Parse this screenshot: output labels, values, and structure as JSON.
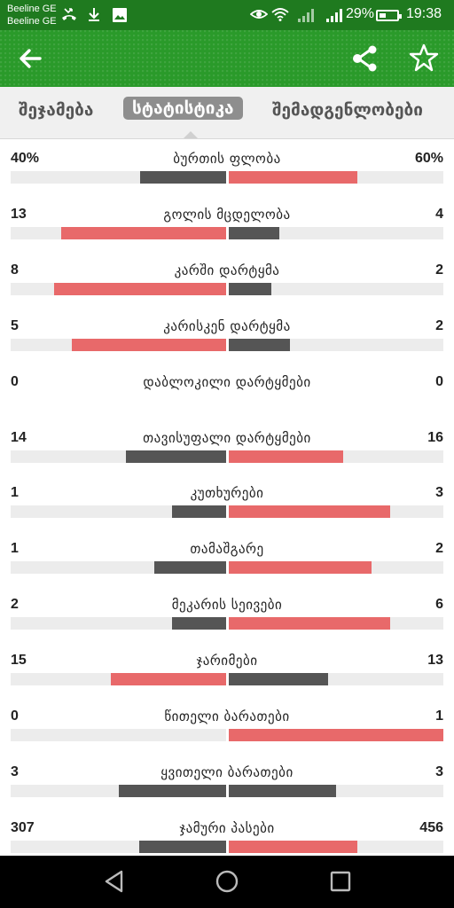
{
  "status_bar": {
    "carrier_1": "Beeline GE",
    "carrier_2": "Beeline GE",
    "battery": "29%",
    "time": "19:38",
    "icons": [
      "missed-call-icon",
      "download-icon",
      "image-icon",
      "eye-icon",
      "wifi-icon",
      "signal-icon",
      "signal-icon",
      "battery-icon"
    ]
  },
  "app_bar": {
    "icons": [
      "back-arrow-icon",
      "share-icon",
      "star-icon"
    ]
  },
  "tabs": [
    {
      "label": "შეჯამება",
      "active": false
    },
    {
      "label": "სტატისტიკა",
      "active": true
    },
    {
      "label": "შემადგენლობები",
      "active": false
    }
  ],
  "colors": {
    "red": "#e8696a",
    "dark": "#555555",
    "track": "#ececec",
    "green": "#2a9a2a"
  },
  "stats": [
    {
      "left": "40%",
      "label": "ბურთის ფლობა",
      "right": "60%",
      "l": 40,
      "r": 60
    },
    {
      "left": "13",
      "label": "გოლის მცდელობა",
      "right": "4",
      "l": 13,
      "r": 4
    },
    {
      "left": "8",
      "label": "კარში დარტყმა",
      "right": "2",
      "l": 8,
      "r": 2
    },
    {
      "left": "5",
      "label": "კარისკენ დარტყმა",
      "right": "2",
      "l": 5,
      "r": 2
    },
    {
      "left": "0",
      "label": "დაბლოკილი დარტყმები",
      "right": "0",
      "l": 0,
      "r": 0
    },
    {
      "left": "14",
      "label": "თავისუფალი დარტყმები",
      "right": "16",
      "l": 14,
      "r": 16
    },
    {
      "left": "1",
      "label": "კუთხურები",
      "right": "3",
      "l": 1,
      "r": 3
    },
    {
      "left": "1",
      "label": "თამაშგარე",
      "right": "2",
      "l": 1,
      "r": 2
    },
    {
      "left": "2",
      "label": "მეკარის სეივები",
      "right": "6",
      "l": 2,
      "r": 6
    },
    {
      "left": "15",
      "label": "ჯარიმები",
      "right": "13",
      "l": 15,
      "r": 13
    },
    {
      "left": "0",
      "label": "წითელი ბარათები",
      "right": "1",
      "l": 0,
      "r": 1
    },
    {
      "left": "3",
      "label": "ყვითელი ბარათები",
      "right": "3",
      "l": 3,
      "r": 3
    },
    {
      "left": "307",
      "label": "ჯამური პასები",
      "right": "456",
      "l": 307,
      "r": 456
    }
  ],
  "nav_bar": {
    "icons": [
      "back-triangle-icon",
      "home-circle-icon",
      "recents-square-icon"
    ]
  }
}
